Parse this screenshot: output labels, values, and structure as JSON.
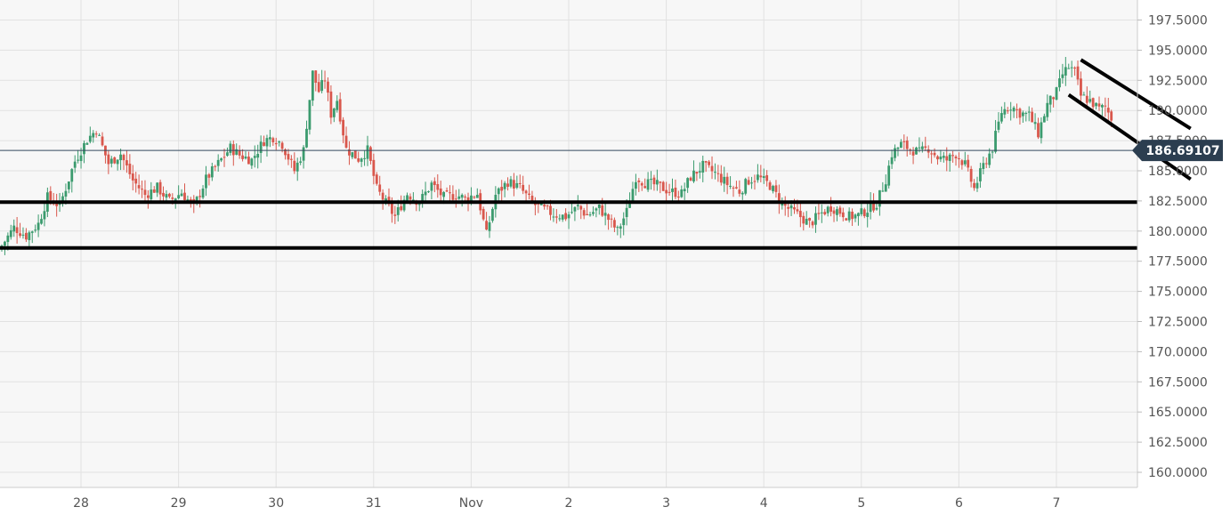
{
  "colors": {
    "plot_bg": "#f7f7f7",
    "grid": "#e2e2e2",
    "up": "#3b9b6e",
    "down": "#d9574c",
    "price_line": "#34495e",
    "price_tag_bg": "#2c3e50",
    "axis_text": "#555555",
    "level_line": "#000000"
  },
  "chart_data": {
    "type": "candlestick",
    "title": "",
    "xlabel": "",
    "ylabel": "",
    "ylim": [
      158.75,
      199.0
    ],
    "x_ticks": [
      "28",
      "29",
      "30",
      "31",
      "Nov",
      "2",
      "3",
      "4",
      "5",
      "6",
      "7"
    ],
    "y_ticks": [
      "197.5000",
      "195.0000",
      "192.5000",
      "190.0000",
      "187.5000",
      "185.0000",
      "182.5000",
      "180.0000",
      "177.5000",
      "175.0000",
      "172.5000",
      "170.0000",
      "167.5000",
      "165.0000",
      "162.5000",
      "160.0000"
    ],
    "current_price": "186.69107",
    "close_path": [
      [
        0,
        178.8
      ],
      [
        4,
        180.3
      ],
      [
        8,
        179.6
      ],
      [
        12,
        180.6
      ],
      [
        15,
        182.8
      ],
      [
        19,
        182.1
      ],
      [
        24,
        185.8
      ],
      [
        28,
        187.6
      ],
      [
        31,
        188.4
      ],
      [
        35,
        185.6
      ],
      [
        39,
        186.4
      ],
      [
        43,
        184.2
      ],
      [
        47,
        183.0
      ],
      [
        51,
        183.6
      ],
      [
        55,
        182.5
      ],
      [
        59,
        183.2
      ],
      [
        63,
        182.0
      ],
      [
        67,
        184.3
      ],
      [
        71,
        185.6
      ],
      [
        75,
        186.9
      ],
      [
        78,
        186.3
      ],
      [
        82,
        185.9
      ],
      [
        86,
        187.5
      ],
      [
        89,
        187.8
      ],
      [
        92,
        187.2
      ],
      [
        94,
        186.1
      ],
      [
        96,
        185.0
      ],
      [
        99,
        186.7
      ],
      [
        102,
        193.1
      ],
      [
        104,
        191.6
      ],
      [
        106,
        192.6
      ],
      [
        108,
        189.7
      ],
      [
        110,
        190.9
      ],
      [
        113,
        186.8
      ],
      [
        117,
        186.0
      ],
      [
        120,
        186.7
      ],
      [
        123,
        183.5
      ],
      [
        126,
        182.3
      ],
      [
        129,
        181.2
      ],
      [
        133,
        183.1
      ],
      [
        137,
        182.4
      ],
      [
        141,
        183.9
      ],
      [
        145,
        182.8
      ],
      [
        149,
        183.0
      ],
      [
        152,
        182.7
      ],
      [
        156,
        183.1
      ],
      [
        159,
        179.7
      ],
      [
        162,
        183.0
      ],
      [
        166,
        184.1
      ],
      [
        170,
        183.6
      ],
      [
        174,
        182.3
      ],
      [
        177,
        181.9
      ],
      [
        181,
        181.4
      ],
      [
        185,
        181.2
      ],
      [
        189,
        182.0
      ],
      [
        192,
        181.3
      ],
      [
        196,
        181.9
      ],
      [
        199,
        181.0
      ],
      [
        202,
        180.0
      ],
      [
        205,
        181.6
      ],
      [
        208,
        184.5
      ],
      [
        211,
        184.0
      ],
      [
        215,
        183.8
      ],
      [
        219,
        183.3
      ],
      [
        223,
        183.1
      ],
      [
        226,
        184.5
      ],
      [
        230,
        185.4
      ],
      [
        234,
        184.8
      ],
      [
        238,
        183.9
      ],
      [
        242,
        183.3
      ],
      [
        245,
        184.2
      ],
      [
        248,
        184.5
      ],
      [
        252,
        183.8
      ],
      [
        256,
        182.2
      ],
      [
        259,
        181.7
      ],
      [
        262,
        181.2
      ],
      [
        265,
        180.6
      ],
      [
        269,
        181.5
      ],
      [
        272,
        182.0
      ],
      [
        275,
        181.6
      ],
      [
        278,
        181.2
      ],
      [
        281,
        181.3
      ],
      [
        284,
        181.8
      ],
      [
        287,
        182.3
      ],
      [
        290,
        184.3
      ],
      [
        292,
        186.4
      ],
      [
        295,
        187.2
      ],
      [
        298,
        186.8
      ],
      [
        301,
        186.5
      ],
      [
        304,
        186.9
      ],
      [
        307,
        186.1
      ],
      [
        310,
        185.9
      ],
      [
        313,
        186.4
      ],
      [
        316,
        185.5
      ],
      [
        319,
        183.5
      ],
      [
        322,
        185.4
      ],
      [
        325,
        186.9
      ],
      [
        328,
        189.9
      ],
      [
        331,
        190.4
      ],
      [
        334,
        189.8
      ],
      [
        337,
        189.6
      ],
      [
        340,
        188.1
      ],
      [
        343,
        190.5
      ],
      [
        346,
        191.5
      ],
      [
        348,
        193.0
      ],
      [
        350,
        193.6
      ],
      [
        352,
        193.2
      ],
      [
        354,
        191.2
      ],
      [
        357,
        190.8
      ],
      [
        360,
        190.1
      ],
      [
        362,
        190.3
      ],
      [
        364,
        189.4
      ],
      [
        367,
        189.8
      ],
      [
        369,
        191.3
      ],
      [
        371,
        191.7
      ],
      [
        373,
        190.2
      ],
      [
        375,
        189.1
      ],
      [
        378,
        189.5
      ],
      [
        380,
        189.0
      ],
      [
        382,
        187.6
      ],
      [
        384,
        186.6
      ],
      [
        386,
        186.2
      ],
      [
        388,
        186.5
      ],
      [
        390,
        186.69
      ]
    ],
    "level_lines": [
      182.4,
      178.6
    ],
    "channel_lines": [
      [
        [
          354,
          194.2
        ],
        [
          390,
          188.5
        ]
      ],
      [
        [
          350,
          191.3
        ],
        [
          390,
          184.3
        ]
      ]
    ]
  }
}
